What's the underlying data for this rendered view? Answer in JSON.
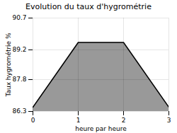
{
  "chart_data": {
    "type": "area",
    "title": "Evolution du taux d'hygrométrie",
    "xlabel": "heure par heure",
    "ylabel": "Taux hygrométrie %",
    "x": [
      0,
      1,
      2,
      3
    ],
    "y": [
      86.5,
      89.55,
      89.55,
      86.5
    ],
    "xlim": [
      0,
      3
    ],
    "ylim": [
      86.3,
      90.7
    ],
    "xticks": [
      0,
      1,
      2,
      3
    ],
    "yticks": [
      86.3,
      87.8,
      89.2,
      90.7
    ],
    "grid": true
  }
}
